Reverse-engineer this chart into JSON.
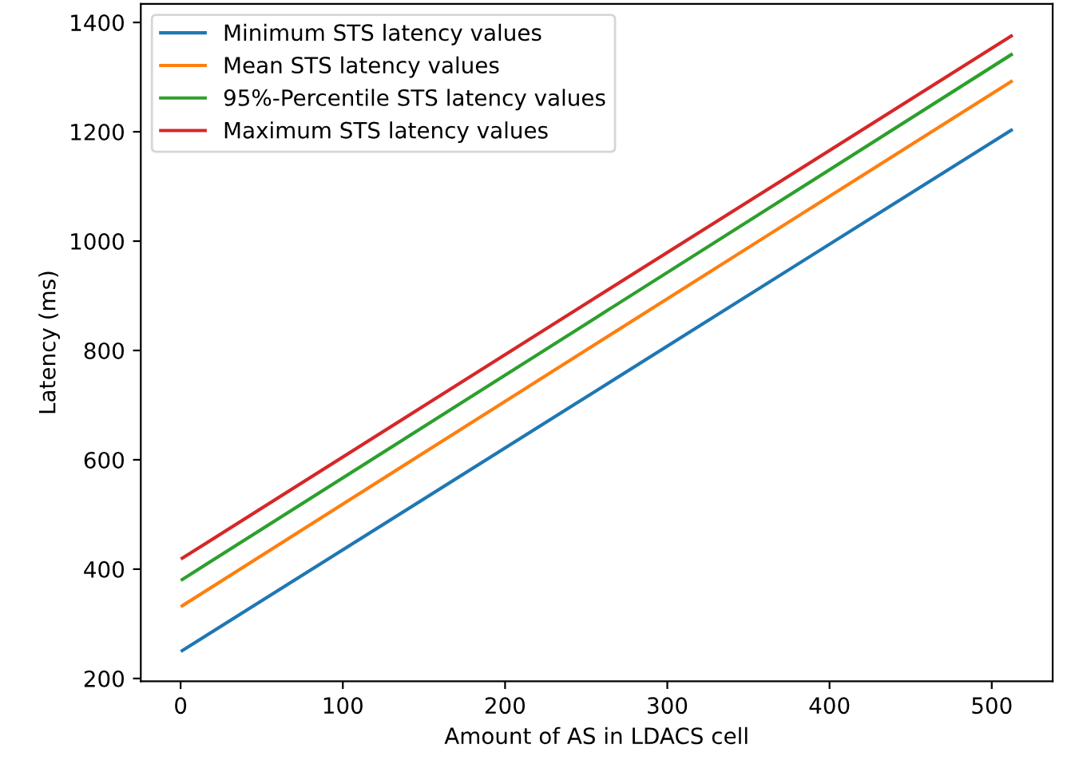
{
  "chart_data": {
    "type": "line",
    "xlabel": "Amount of AS in LDACS cell",
    "ylabel": "Latency (ms)",
    "x": [
      1,
      256,
      512
    ],
    "series": [
      {
        "name": "Minimum STS latency values",
        "color": "#1f77b4",
        "values": [
          251,
          726,
          1203
        ]
      },
      {
        "name": "Mean STS latency values",
        "color": "#ff7f0e",
        "values": [
          333,
          812,
          1292
        ]
      },
      {
        "name": "95%-Percentile STS latency values",
        "color": "#2ca02c",
        "values": [
          381,
          860,
          1341
        ]
      },
      {
        "name": "Maximum STS latency values",
        "color": "#d62728",
        "values": [
          420,
          897,
          1375
        ]
      }
    ],
    "xlim": [
      -24.55,
      537.55
    ],
    "xticks": [
      0,
      100,
      200,
      300,
      400,
      500
    ],
    "ylim": [
      195,
      1434
    ],
    "yticks": [
      200,
      400,
      600,
      800,
      1000,
      1200,
      1400
    ],
    "legend": "top left",
    "grid": false,
    "marker": "none",
    "line_style": "solid"
  }
}
